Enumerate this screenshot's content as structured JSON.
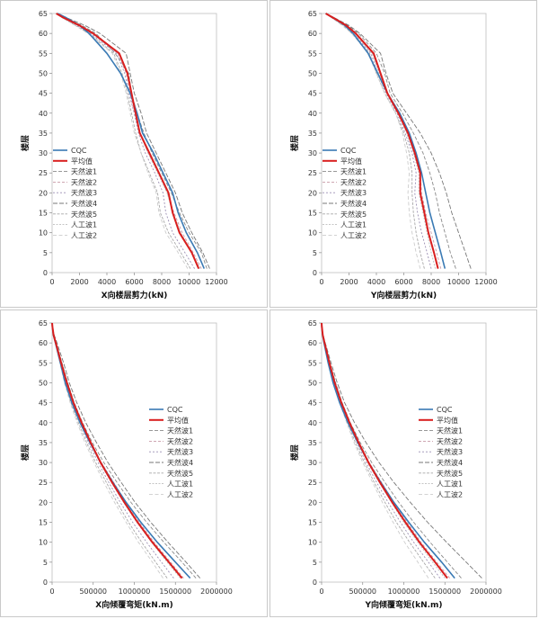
{
  "legend_names": [
    "CQC",
    "平均值",
    "天然波1",
    "天然波2",
    "天然波3",
    "天然波4",
    "天然波5",
    "人工波1",
    "人工波2"
  ],
  "colors": {
    "cqc": "#3a7ab4",
    "mean": "#d91e1e",
    "waves": [
      "#8a8a8a",
      "#c89aa8",
      "#9b8fb3",
      "#777777",
      "#a8a8a8",
      "#bdbdbd",
      "#cccccc"
    ]
  },
  "chart_data": [
    {
      "type": "line",
      "xlabel": "X向楼层剪力(kN)",
      "ylabel": "楼层",
      "xlim": [
        0,
        12000
      ],
      "ylim": [
        0,
        65
      ],
      "xticks": [
        "0",
        "2000",
        "4000",
        "6000",
        "8000",
        "10000",
        "12000"
      ],
      "yticks": [
        "0",
        "5",
        "10",
        "15",
        "20",
        "25",
        "30",
        "35",
        "40",
        "45",
        "50",
        "55",
        "60",
        "65"
      ],
      "legend": "left-middle",
      "y": [
        1,
        5,
        10,
        15,
        20,
        25,
        30,
        35,
        40,
        45,
        50,
        55,
        60,
        62,
        64,
        65
      ],
      "series": [
        {
          "name": "CQC",
          "values": [
            11100,
            10600,
            9800,
            9200,
            8800,
            8100,
            7400,
            6600,
            6200,
            5700,
            5000,
            4000,
            2700,
            2000,
            1000,
            400
          ]
        },
        {
          "name": "平均值",
          "values": [
            10700,
            10200,
            9300,
            8800,
            8500,
            7800,
            7100,
            6400,
            6100,
            5800,
            5500,
            4900,
            3000,
            2000,
            800,
            300
          ]
        },
        {
          "name": "天然波1",
          "values": [
            11300,
            10900,
            10000,
            9300,
            8700,
            8000,
            7300,
            6700,
            6200,
            5800,
            5600,
            4600,
            3200,
            2200,
            900,
            300
          ]
        },
        {
          "name": "天然波2",
          "values": [
            10900,
            10300,
            9500,
            8900,
            8400,
            7800,
            7000,
            6400,
            6000,
            5700,
            5400,
            4800,
            2900,
            1900,
            800,
            300
          ]
        },
        {
          "name": "天然波3",
          "values": [
            10400,
            9700,
            8800,
            8300,
            8100,
            7500,
            6800,
            6300,
            6000,
            5600,
            5300,
            4700,
            2800,
            1800,
            700,
            300
          ]
        },
        {
          "name": "天然波4",
          "values": [
            11500,
            11000,
            10200,
            9500,
            9000,
            8300,
            7600,
            6900,
            6500,
            6000,
            5700,
            5400,
            3500,
            2400,
            1000,
            300
          ]
        },
        {
          "name": "天然波5",
          "values": [
            10100,
            9400,
            8500,
            7900,
            7700,
            7100,
            6500,
            6100,
            5800,
            5500,
            5100,
            4500,
            2700,
            1700,
            700,
            300
          ]
        },
        {
          "name": "人工波1",
          "values": [
            10800,
            10200,
            9400,
            8800,
            8400,
            7700,
            7000,
            6400,
            6100,
            5800,
            5500,
            4900,
            3000,
            2000,
            800,
            300
          ]
        },
        {
          "name": "人工波2",
          "values": [
            9900,
            9200,
            8300,
            7800,
            7600,
            7000,
            6500,
            6000,
            5700,
            5400,
            5000,
            4400,
            2600,
            1700,
            700,
            300
          ]
        }
      ]
    },
    {
      "type": "line",
      "xlabel": "Y向楼层剪力(kN)",
      "ylabel": "楼层",
      "xlim": [
        0,
        12000
      ],
      "ylim": [
        0,
        65
      ],
      "xticks": [
        "0",
        "2000",
        "4000",
        "6000",
        "8000",
        "10000",
        "12000"
      ],
      "yticks": [
        "0",
        "5",
        "10",
        "15",
        "20",
        "25",
        "30",
        "35",
        "40",
        "45",
        "50",
        "55",
        "60",
        "65"
      ],
      "legend": "left-middle",
      "y": [
        1,
        5,
        10,
        15,
        20,
        25,
        30,
        35,
        40,
        45,
        50,
        55,
        60,
        62,
        64,
        65
      ],
      "series": [
        {
          "name": "CQC",
          "values": [
            9000,
            8700,
            8300,
            7900,
            7600,
            7300,
            6900,
            6400,
            5700,
            4800,
            4100,
            3400,
            2300,
            1700,
            800,
            300
          ]
        },
        {
          "name": "平均值",
          "values": [
            8500,
            8200,
            7800,
            7500,
            7200,
            7200,
            6800,
            6300,
            5600,
            4800,
            4300,
            3800,
            2500,
            1800,
            800,
            300
          ]
        },
        {
          "name": "天然波1",
          "values": [
            9800,
            9400,
            9000,
            8600,
            8300,
            7900,
            7400,
            6700,
            5900,
            5000,
            4600,
            4000,
            2700,
            1900,
            900,
            300
          ]
        },
        {
          "name": "天然波2",
          "values": [
            8700,
            8400,
            8000,
            7600,
            7300,
            7200,
            6800,
            6300,
            5600,
            4800,
            4300,
            3700,
            2400,
            1700,
            800,
            300
          ]
        },
        {
          "name": "天然波3",
          "values": [
            8000,
            7700,
            7300,
            7000,
            6800,
            6900,
            6600,
            6100,
            5500,
            4700,
            4100,
            3600,
            2300,
            1700,
            700,
            300
          ]
        },
        {
          "name": "天然波4",
          "values": [
            10900,
            10500,
            10000,
            9500,
            9100,
            8600,
            8000,
            7200,
            6200,
            5200,
            4700,
            4300,
            2800,
            2000,
            900,
            300
          ]
        },
        {
          "name": "天然波5",
          "values": [
            7500,
            7200,
            6900,
            6700,
            6600,
            6600,
            6400,
            6000,
            5400,
            4600,
            4000,
            3500,
            2200,
            1600,
            700,
            300
          ]
        },
        {
          "name": "人工波1",
          "values": [
            8300,
            8000,
            7700,
            7400,
            7100,
            7100,
            6700,
            6200,
            5600,
            4800,
            4200,
            3700,
            2400,
            1700,
            800,
            300
          ]
        },
        {
          "name": "人工波2",
          "values": [
            7200,
            6900,
            6600,
            6400,
            6300,
            6400,
            6200,
            5900,
            5400,
            4600,
            4000,
            3400,
            2200,
            1500,
            700,
            300
          ]
        }
      ]
    },
    {
      "type": "line",
      "xlabel": "X向倾覆弯矩(kN.m)",
      "ylabel": "楼层",
      "xlim": [
        0,
        2000000
      ],
      "ylim": [
        0,
        65
      ],
      "xticks": [
        "0",
        "500000",
        "1000000",
        "1500000",
        "2000000"
      ],
      "yticks": [
        "0",
        "5",
        "10",
        "15",
        "20",
        "25",
        "30",
        "35",
        "40",
        "45",
        "50",
        "55",
        "60",
        "65"
      ],
      "legend": "right-middle",
      "y": [
        1,
        5,
        10,
        15,
        20,
        25,
        30,
        35,
        40,
        45,
        50,
        55,
        60,
        62,
        64,
        65
      ],
      "series": [
        {
          "name": "CQC",
          "values": [
            1680000,
            1500000,
            1280000,
            1080000,
            900000,
            740000,
            590000,
            460000,
            340000,
            240000,
            160000,
            100000,
            40000,
            15000,
            3000,
            0
          ]
        },
        {
          "name": "平均值",
          "values": [
            1580000,
            1420000,
            1220000,
            1040000,
            880000,
            730000,
            590000,
            470000,
            360000,
            260000,
            180000,
            110000,
            45000,
            18000,
            4000,
            0
          ]
        },
        {
          "name": "天然波1",
          "values": [
            1750000,
            1580000,
            1360000,
            1150000,
            960000,
            790000,
            630000,
            490000,
            370000,
            270000,
            190000,
            120000,
            50000,
            20000,
            4000,
            0
          ]
        },
        {
          "name": "天然波2",
          "values": [
            1600000,
            1440000,
            1240000,
            1060000,
            900000,
            750000,
            600000,
            470000,
            360000,
            260000,
            180000,
            110000,
            45000,
            18000,
            4000,
            0
          ]
        },
        {
          "name": "天然波3",
          "values": [
            1480000,
            1330000,
            1150000,
            980000,
            830000,
            690000,
            560000,
            440000,
            340000,
            250000,
            170000,
            105000,
            42000,
            17000,
            3000,
            0
          ]
        },
        {
          "name": "天然波4",
          "values": [
            1800000,
            1630000,
            1410000,
            1200000,
            1010000,
            840000,
            680000,
            540000,
            410000,
            300000,
            210000,
            140000,
            60000,
            25000,
            5000,
            0
          ]
        },
        {
          "name": "天然波5",
          "values": [
            1400000,
            1260000,
            1090000,
            930000,
            790000,
            660000,
            530000,
            420000,
            320000,
            230000,
            160000,
            100000,
            40000,
            16000,
            3000,
            0
          ]
        },
        {
          "name": "人工波1",
          "values": [
            1560000,
            1400000,
            1210000,
            1030000,
            870000,
            720000,
            580000,
            460000,
            350000,
            255000,
            175000,
            110000,
            44000,
            18000,
            4000,
            0
          ]
        },
        {
          "name": "人工波2",
          "values": [
            1350000,
            1220000,
            1050000,
            900000,
            760000,
            630000,
            510000,
            400000,
            305000,
            220000,
            150000,
            95000,
            38000,
            15000,
            3000,
            0
          ]
        }
      ]
    },
    {
      "type": "line",
      "xlabel": "Y向倾覆弯矩(kN.m)",
      "ylabel": "楼层",
      "xlim": [
        0,
        2000000
      ],
      "ylim": [
        0,
        65
      ],
      "xticks": [
        "0",
        "500000",
        "1000000",
        "1500000",
        "2000000"
      ],
      "yticks": [
        "0",
        "5",
        "10",
        "15",
        "20",
        "25",
        "30",
        "35",
        "40",
        "45",
        "50",
        "55",
        "60",
        "65"
      ],
      "legend": "right-middle",
      "y": [
        1,
        5,
        10,
        15,
        20,
        25,
        30,
        35,
        40,
        45,
        50,
        55,
        60,
        62,
        64,
        65
      ],
      "series": [
        {
          "name": "CQC",
          "values": [
            1620000,
            1460000,
            1250000,
            1060000,
            880000,
            720000,
            570000,
            440000,
            320000,
            220000,
            140000,
            80000,
            30000,
            12000,
            2000,
            0
          ]
        },
        {
          "name": "平均值",
          "values": [
            1530000,
            1380000,
            1190000,
            1020000,
            860000,
            710000,
            570000,
            450000,
            340000,
            240000,
            160000,
            95000,
            36000,
            14000,
            3000,
            0
          ]
        },
        {
          "name": "天然波1",
          "values": [
            1700000,
            1530000,
            1320000,
            1120000,
            940000,
            770000,
            610000,
            470000,
            350000,
            250000,
            170000,
            100000,
            40000,
            16000,
            3000,
            0
          ]
        },
        {
          "name": "天然波2",
          "values": [
            1560000,
            1400000,
            1210000,
            1040000,
            880000,
            730000,
            580000,
            460000,
            345000,
            245000,
            165000,
            98000,
            37000,
            15000,
            3000,
            0
          ]
        },
        {
          "name": "天然波3",
          "values": [
            1440000,
            1300000,
            1120000,
            960000,
            810000,
            670000,
            540000,
            430000,
            330000,
            235000,
            158000,
            92000,
            34000,
            14000,
            3000,
            0
          ]
        },
        {
          "name": "天然波4",
          "values": [
            1950000,
            1760000,
            1520000,
            1290000,
            1080000,
            880000,
            700000,
            540000,
            400000,
            280000,
            190000,
            115000,
            45000,
            18000,
            4000,
            0
          ]
        },
        {
          "name": "天然波5",
          "values": [
            1380000,
            1240000,
            1070000,
            910000,
            770000,
            640000,
            520000,
            410000,
            315000,
            225000,
            150000,
            88000,
            33000,
            13000,
            3000,
            0
          ]
        },
        {
          "name": "人工波1",
          "values": [
            1500000,
            1350000,
            1170000,
            1000000,
            850000,
            700000,
            560000,
            445000,
            338000,
            240000,
            160000,
            95000,
            36000,
            14000,
            3000,
            0
          ]
        },
        {
          "name": "人工波2",
          "values": [
            1300000,
            1170000,
            1010000,
            870000,
            740000,
            620000,
            500000,
            395000,
            305000,
            220000,
            148000,
            86000,
            32000,
            13000,
            3000,
            0
          ]
        }
      ]
    }
  ]
}
